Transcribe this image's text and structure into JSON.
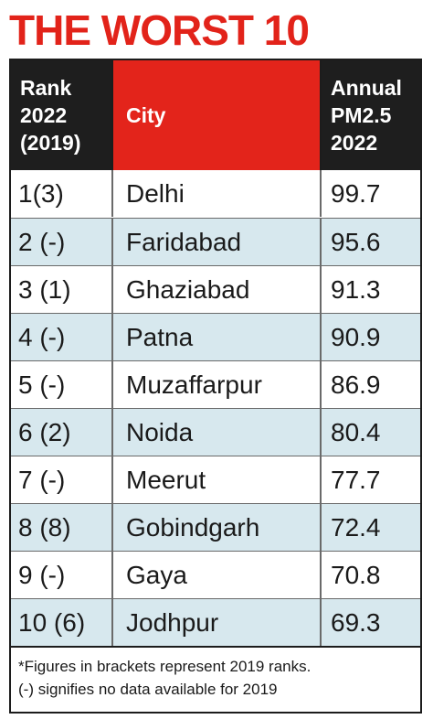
{
  "title": "THE WORST 10",
  "columns": {
    "rank": "Rank\n2022\n(2019)",
    "city": "City",
    "pm": "Annual\nPM2.5\n2022"
  },
  "rows": [
    {
      "rank": "1(3)",
      "city": "Delhi",
      "pm": "99.7"
    },
    {
      "rank": "2 (-)",
      "city": "Faridabad",
      "pm": "95.6"
    },
    {
      "rank": "3 (1)",
      "city": "Ghaziabad",
      "pm": "91.3"
    },
    {
      "rank": "4 (-)",
      "city": "Patna",
      "pm": "90.9"
    },
    {
      "rank": "5 (-)",
      "city": "Muzaffarpur",
      "pm": "86.9"
    },
    {
      "rank": "6 (2)",
      "city": "Noida",
      "pm": "80.4"
    },
    {
      "rank": "7 (-)",
      "city": "Meerut",
      "pm": "77.7"
    },
    {
      "rank": "8 (8)",
      "city": "Gobindgarh",
      "pm": "72.4"
    },
    {
      "rank": "9 (-)",
      "city": "Gaya",
      "pm": "70.8"
    },
    {
      "rank": "10 (6)",
      "city": "Jodhpur",
      "pm": "69.3"
    }
  ],
  "footnote": {
    "line1": "*Figures in brackets represent 2019 ranks.",
    "line2": "(-) signifies no data available for 2019"
  },
  "colors": {
    "accent_red": "#e3241b",
    "header_dark": "#1e1e1e",
    "row_shade": "#d7e8ee"
  }
}
